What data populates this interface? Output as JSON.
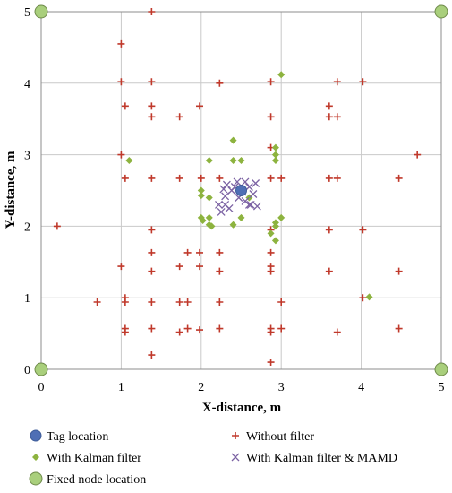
{
  "chart_data": {
    "type": "scatter",
    "xlabel": "X-distance, m",
    "ylabel": "Y-distance, m",
    "xlim": [
      0,
      5
    ],
    "ylim": [
      0,
      5
    ],
    "x_ticks": [
      "0",
      "1",
      "2",
      "3",
      "4",
      "5"
    ],
    "y_ticks": [
      "0",
      "1",
      "2",
      "3",
      "4",
      "5"
    ],
    "grid": true,
    "legend_position": "bottom",
    "series": [
      {
        "name": "Tag location",
        "marker": "circle",
        "color": "#4f6fb5",
        "points": [
          [
            2.5,
            2.5
          ]
        ]
      },
      {
        "name": "Without filter",
        "marker": "plus",
        "color": "#c0392b",
        "points": [
          [
            1.38,
            5.0
          ],
          [
            1.0,
            4.55
          ],
          [
            1.0,
            4.02
          ],
          [
            1.38,
            4.02
          ],
          [
            2.23,
            4.0
          ],
          [
            2.87,
            4.02
          ],
          [
            3.7,
            4.02
          ],
          [
            4.02,
            4.02
          ],
          [
            1.05,
            3.68
          ],
          [
            1.38,
            3.68
          ],
          [
            1.98,
            3.68
          ],
          [
            3.6,
            3.68
          ],
          [
            1.38,
            3.53
          ],
          [
            1.73,
            3.53
          ],
          [
            2.87,
            3.53
          ],
          [
            3.6,
            3.53
          ],
          [
            3.7,
            3.53
          ],
          [
            1.0,
            3.0
          ],
          [
            2.87,
            3.1
          ],
          [
            4.7,
            3.0
          ],
          [
            1.05,
            2.67
          ],
          [
            1.38,
            2.67
          ],
          [
            1.73,
            2.67
          ],
          [
            2.0,
            2.67
          ],
          [
            2.23,
            2.67
          ],
          [
            2.87,
            2.67
          ],
          [
            3.0,
            2.67
          ],
          [
            3.6,
            2.67
          ],
          [
            3.7,
            2.67
          ],
          [
            4.47,
            2.67
          ],
          [
            0.2,
            2.0
          ],
          [
            1.38,
            1.95
          ],
          [
            2.87,
            1.95
          ],
          [
            3.6,
            1.95
          ],
          [
            4.02,
            1.95
          ],
          [
            1.38,
            1.63
          ],
          [
            1.83,
            1.63
          ],
          [
            1.98,
            1.63
          ],
          [
            2.23,
            1.63
          ],
          [
            2.87,
            1.63
          ],
          [
            1.0,
            1.44
          ],
          [
            1.38,
            1.37
          ],
          [
            1.73,
            1.44
          ],
          [
            1.98,
            1.44
          ],
          [
            2.23,
            1.37
          ],
          [
            2.87,
            1.44
          ],
          [
            2.87,
            1.37
          ],
          [
            3.6,
            1.37
          ],
          [
            4.47,
            1.37
          ],
          [
            1.05,
            1.0
          ],
          [
            4.02,
            1.0
          ],
          [
            0.7,
            0.94
          ],
          [
            1.05,
            0.94
          ],
          [
            1.38,
            0.94
          ],
          [
            1.73,
            0.94
          ],
          [
            1.83,
            0.94
          ],
          [
            2.23,
            0.94
          ],
          [
            3.0,
            0.94
          ],
          [
            1.05,
            0.57
          ],
          [
            1.05,
            0.52
          ],
          [
            1.38,
            0.57
          ],
          [
            1.73,
            0.52
          ],
          [
            1.83,
            0.57
          ],
          [
            1.98,
            0.55
          ],
          [
            2.23,
            0.57
          ],
          [
            2.87,
            0.57
          ],
          [
            2.87,
            0.52
          ],
          [
            3.0,
            0.57
          ],
          [
            3.7,
            0.52
          ],
          [
            4.47,
            0.57
          ],
          [
            1.38,
            0.2
          ],
          [
            2.87,
            0.1
          ]
        ]
      },
      {
        "name": "With Kalman filter",
        "marker": "diamond",
        "color": "#8db33f",
        "points": [
          [
            3.0,
            4.12
          ],
          [
            2.4,
            3.2
          ],
          [
            2.93,
            3.1
          ],
          [
            2.93,
            3.0
          ],
          [
            1.1,
            2.92
          ],
          [
            2.1,
            2.92
          ],
          [
            2.4,
            2.92
          ],
          [
            2.5,
            2.92
          ],
          [
            2.93,
            2.92
          ],
          [
            2.0,
            2.5
          ],
          [
            2.0,
            2.43
          ],
          [
            2.1,
            2.4
          ],
          [
            2.6,
            2.4
          ],
          [
            2.93,
            2.0
          ],
          [
            3.0,
            2.12
          ],
          [
            2.93,
            2.05
          ],
          [
            2.5,
            2.12
          ],
          [
            2.0,
            2.12
          ],
          [
            2.02,
            2.08
          ],
          [
            2.1,
            2.12
          ],
          [
            2.1,
            2.02
          ],
          [
            2.13,
            2.0
          ],
          [
            2.4,
            2.02
          ],
          [
            2.87,
            1.9
          ],
          [
            2.93,
            1.8
          ],
          [
            4.1,
            1.01
          ]
        ]
      },
      {
        "name": "With Kalman filter & MAMD",
        "marker": "x",
        "color": "#7b62a3",
        "points": [
          [
            2.22,
            2.3
          ],
          [
            2.25,
            2.2
          ],
          [
            2.3,
            2.42
          ],
          [
            2.32,
            2.58
          ],
          [
            2.38,
            2.5
          ],
          [
            2.42,
            2.55
          ],
          [
            2.45,
            2.62
          ],
          [
            2.55,
            2.62
          ],
          [
            2.6,
            2.55
          ],
          [
            2.65,
            2.45
          ],
          [
            2.6,
            2.3
          ],
          [
            2.7,
            2.28
          ],
          [
            2.55,
            2.35
          ],
          [
            2.3,
            2.3
          ],
          [
            2.35,
            2.25
          ],
          [
            2.47,
            2.4
          ],
          [
            2.52,
            2.48
          ],
          [
            2.68,
            2.6
          ],
          [
            2.28,
            2.52
          ],
          [
            2.62,
            2.3
          ]
        ]
      },
      {
        "name": "Fixed node location",
        "marker": "circle",
        "color": "#a9cf7c",
        "points": [
          [
            0,
            0
          ],
          [
            0,
            5
          ],
          [
            5,
            0
          ],
          [
            5,
            5
          ]
        ]
      }
    ]
  }
}
